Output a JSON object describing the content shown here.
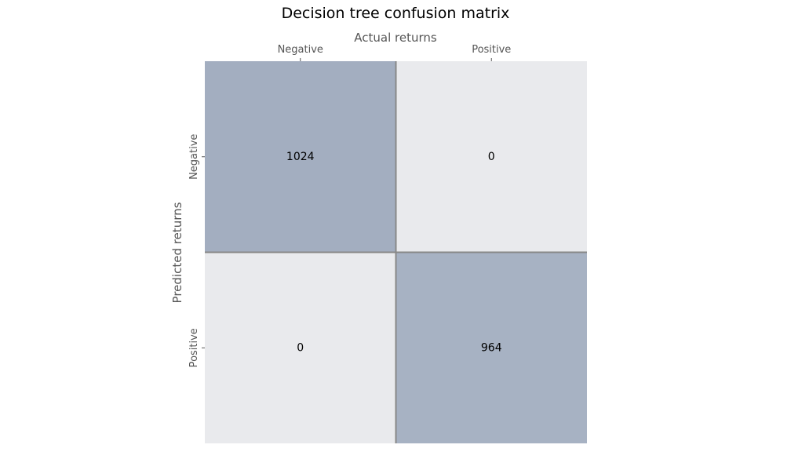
{
  "chart_data": {
    "type": "heatmap",
    "title": "Decision tree confusion matrix",
    "xlabel": "Actual returns",
    "ylabel": "Predicted returns",
    "x_categories": [
      "Negative",
      "Positive"
    ],
    "y_categories": [
      "Negative",
      "Positive"
    ],
    "values": [
      [
        1024,
        0
      ],
      [
        0,
        964
      ]
    ],
    "x_axis_position": "top",
    "legend": "none",
    "grid": false,
    "colors": {
      "low": "#e9eaed",
      "high": "#a3aec0",
      "divider": "#888888"
    }
  }
}
